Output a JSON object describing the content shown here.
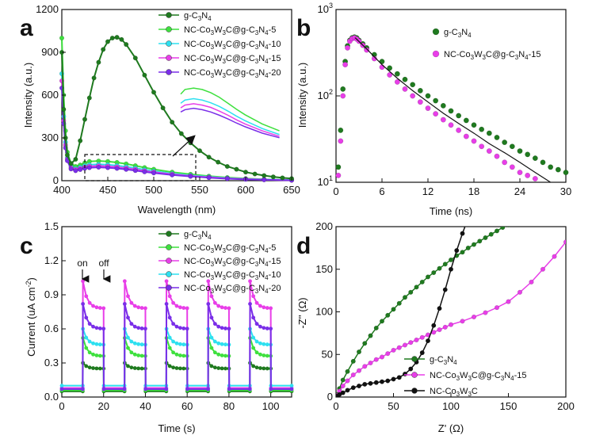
{
  "chart_data": [
    {
      "panel": "a",
      "type": "line",
      "xlabel": "Wavelength (nm)",
      "ylabel": "Intensity (a.u.)",
      "xlim": [
        400,
        650
      ],
      "ylim": [
        0,
        1200
      ],
      "xticks": [
        400,
        450,
        500,
        550,
        600,
        650
      ],
      "yticks": [
        0,
        300,
        600,
        900,
        1200
      ],
      "legend_position": "top-right",
      "series": [
        {
          "name": "g-C3N4",
          "color": "#1f7a1f",
          "marker": "circle",
          "x": [
            400,
            402,
            404,
            406,
            410,
            415,
            420,
            425,
            430,
            435,
            440,
            445,
            450,
            455,
            460,
            465,
            470,
            480,
            490,
            500,
            510,
            520,
            530,
            540,
            550,
            560,
            570,
            580,
            590,
            600,
            610,
            620,
            630,
            640,
            650
          ],
          "y": [
            900,
            500,
            300,
            180,
            120,
            150,
            280,
            430,
            580,
            720,
            830,
            920,
            975,
            1000,
            1005,
            990,
            955,
            860,
            740,
            620,
            510,
            410,
            330,
            265,
            210,
            165,
            130,
            100,
            80,
            60,
            47,
            36,
            27,
            20,
            15
          ]
        },
        {
          "name": "NC-Co3W3C@g-C3N4-5",
          "color": "#3ee03e",
          "marker": "circle",
          "x": [
            400,
            402,
            404,
            406,
            410,
            415,
            420,
            425,
            430,
            440,
            450,
            460,
            470,
            480,
            490,
            500,
            520,
            540,
            560,
            580,
            600,
            620,
            650
          ],
          "y": [
            1000,
            600,
            350,
            200,
            120,
            100,
            110,
            125,
            135,
            138,
            135,
            128,
            118,
            105,
            92,
            80,
            60,
            45,
            32,
            22,
            15,
            10,
            5
          ]
        },
        {
          "name": "NC-Co3W3C@g-C3N4-10",
          "color": "#2ee0f0",
          "marker": "circle",
          "x": [
            400,
            402,
            404,
            406,
            410,
            415,
            420,
            425,
            430,
            440,
            450,
            460,
            470,
            480,
            490,
            500,
            520,
            540,
            560,
            580,
            600,
            620,
            650
          ],
          "y": [
            750,
            450,
            270,
            160,
            100,
            85,
            95,
            105,
            112,
            115,
            112,
            106,
            98,
            88,
            77,
            67,
            50,
            37,
            27,
            18,
            12,
            8,
            4
          ]
        },
        {
          "name": "NC-Co3W3C@g-C3N4-15",
          "color": "#e83ee8",
          "marker": "circle",
          "x": [
            400,
            402,
            404,
            406,
            410,
            415,
            420,
            425,
            430,
            440,
            450,
            460,
            470,
            480,
            490,
            500,
            520,
            540,
            560,
            580,
            600,
            620,
            650
          ],
          "y": [
            700,
            420,
            250,
            150,
            90,
            78,
            86,
            95,
            101,
            104,
            101,
            96,
            88,
            79,
            69,
            60,
            45,
            33,
            24,
            16,
            11,
            7,
            3
          ]
        },
        {
          "name": "NC-Co3W3C@g-C3N4-20",
          "color": "#7a2ee8",
          "marker": "circle",
          "x": [
            400,
            402,
            404,
            406,
            410,
            415,
            420,
            425,
            430,
            440,
            450,
            460,
            470,
            480,
            490,
            500,
            520,
            540,
            560,
            580,
            600,
            620,
            650
          ],
          "y": [
            650,
            400,
            230,
            140,
            82,
            70,
            78,
            86,
            91,
            94,
            91,
            86,
            79,
            71,
            62,
            54,
            40,
            30,
            21,
            14,
            9,
            6,
            3
          ]
        }
      ],
      "annotations": [
        "dashed box 425–545 nm, inset zoom with arrow"
      ]
    },
    {
      "panel": "b",
      "type": "scatter",
      "xlabel": "Time (ns)",
      "ylabel": "Intensity (a.u.)",
      "xlim": [
        0,
        30
      ],
      "ylim": [
        10,
        1000
      ],
      "yscale": "log",
      "xticks": [
        0,
        6,
        12,
        18,
        24,
        30
      ],
      "yticks": [
        10,
        100,
        1000
      ],
      "ytick_labels": [
        "10",
        "10",
        "10"
      ],
      "ytick_exponents": [
        "1",
        "2",
        "3"
      ],
      "legend_position": "top-right",
      "series": [
        {
          "name": "g-C3N4",
          "color": "#1f7a1f",
          "x": [
            0.3,
            0.6,
            0.9,
            1.2,
            1.5,
            1.8,
            2.1,
            2.4,
            2.7,
            3.0,
            3.5,
            4,
            5,
            6,
            7,
            8,
            9,
            10,
            11,
            12,
            13,
            14,
            15,
            16,
            17,
            18,
            19,
            20,
            21,
            22,
            23,
            24,
            25,
            26,
            27,
            28,
            29,
            30
          ],
          "y": [
            15,
            40,
            120,
            250,
            380,
            440,
            470,
            480,
            470,
            440,
            400,
            360,
            300,
            250,
            210,
            180,
            155,
            135,
            115,
            100,
            88,
            77,
            67,
            59,
            52,
            46,
            41,
            37,
            33,
            29,
            26,
            23,
            21,
            19,
            17,
            15,
            14,
            13
          ]
        },
        {
          "name": "NC-Co3W3C@g-C3N4-15",
          "color": "#e83ee8",
          "x": [
            0.3,
            0.6,
            0.9,
            1.2,
            1.5,
            1.8,
            2.1,
            2.4,
            2.7,
            3.0,
            3.5,
            4,
            5,
            6,
            7,
            8,
            9,
            10,
            11,
            12,
            13,
            14,
            15,
            16,
            17,
            18,
            19,
            20,
            21,
            22,
            23,
            24,
            25,
            26
          ],
          "y": [
            12,
            30,
            100,
            230,
            360,
            430,
            460,
            470,
            455,
            430,
            385,
            340,
            270,
            215,
            175,
            145,
            120,
            100,
            85,
            72,
            62,
            53,
            46,
            40,
            34,
            30,
            26,
            23,
            20,
            17,
            15,
            13,
            12,
            11
          ]
        }
      ],
      "fit_curve": {
        "x": [
          2.5,
          4,
          6,
          8,
          10,
          12,
          14,
          16,
          18,
          20,
          22,
          24,
          26,
          28
        ],
        "y": [
          470,
          350,
          230,
          160,
          115,
          85,
          63,
          48,
          37,
          28,
          22,
          17,
          13,
          10
        ]
      }
    },
    {
      "panel": "c",
      "type": "line",
      "xlabel": "Time (s)",
      "ylabel": "Current (uA cm",
      "ylabel_sup": "-2",
      "ylabel_close": ")",
      "xlim": [
        0,
        110
      ],
      "ylim": [
        0,
        1.5
      ],
      "xticks": [
        0,
        20,
        40,
        60,
        80,
        100
      ],
      "yticks": [
        0.0,
        0.3,
        0.6,
        0.9,
        1.2,
        1.5
      ],
      "ytick_labels": [
        "0.0",
        "0.3",
        "0.6",
        "0.9",
        "1.2",
        "1.5"
      ],
      "legend_position": "top-right",
      "light_periods": [
        [
          10,
          20
        ],
        [
          30,
          40
        ],
        [
          50,
          60
        ],
        [
          70,
          80
        ],
        [
          90,
          100
        ]
      ],
      "annotations": [
        "on",
        "off"
      ],
      "series": [
        {
          "name": "g-C3N4",
          "color": "#1f7a1f",
          "on_start": 0.3,
          "on_end": 0.25,
          "off": 0.05
        },
        {
          "name": "NC-Co3W3C@g-C3N4-5",
          "color": "#3ee03e",
          "on_start": 0.52,
          "on_end": 0.36,
          "off": 0.06
        },
        {
          "name": "NC-Co3W3C@g-C3N4-15",
          "color": "#e83ee8",
          "on_start": 1.02,
          "on_end": 0.78,
          "off": 0.08
        },
        {
          "name": "NC-Co3W3C@g-C3N4-10",
          "color": "#2ee0f0",
          "on_start": 0.6,
          "on_end": 0.46,
          "off": 0.1
        },
        {
          "name": "NC-Co3W3C@g-C3N4-20",
          "color": "#7a2ee8",
          "on_start": 0.82,
          "on_end": 0.6,
          "off": 0.07
        }
      ]
    },
    {
      "panel": "d",
      "type": "scatter",
      "xlabel": "Z' (Ω)",
      "ylabel": "-Z'' (Ω)",
      "xlim": [
        0,
        200
      ],
      "ylim": [
        0,
        200
      ],
      "xticks": [
        0,
        50,
        100,
        150,
        200
      ],
      "yticks": [
        0,
        50,
        100,
        150,
        200
      ],
      "legend_position": "bottom-right",
      "series": [
        {
          "name": "g-C3N4",
          "color": "#1f7a1f",
          "x": [
            1,
            3,
            6,
            10,
            15,
            20,
            25,
            30,
            35,
            40,
            45,
            50,
            55,
            60,
            65,
            70,
            75,
            80,
            85,
            90,
            95,
            100,
            105,
            110,
            115,
            120,
            125,
            130,
            135,
            140,
            145,
            150,
            155
          ],
          "y": [
            3,
            10,
            20,
            30,
            42,
            53,
            63,
            72,
            81,
            89,
            96,
            103,
            110,
            117,
            123,
            129,
            135,
            141,
            146,
            151,
            156,
            161,
            166,
            170,
            175,
            179,
            183,
            187,
            191,
            195,
            199,
            202,
            205
          ]
        },
        {
          "name": "NC-Co3W3C@g-C3N4-15",
          "color": "#e83ee8",
          "x": [
            1,
            3,
            6,
            10,
            15,
            20,
            25,
            30,
            35,
            40,
            45,
            50,
            55,
            60,
            65,
            70,
            75,
            80,
            85,
            90,
            95,
            100,
            110,
            120,
            130,
            140,
            150,
            160,
            170,
            180,
            190,
            200
          ],
          "y": [
            2,
            7,
            13,
            19,
            26,
            31,
            36,
            40,
            44,
            47,
            51,
            55,
            58,
            61,
            64,
            67,
            70,
            73,
            76,
            79,
            82,
            85,
            89,
            94,
            99,
            105,
            112,
            123,
            135,
            150,
            165,
            182
          ]
        },
        {
          "name": "NC-Co3W3C",
          "color": "#111111",
          "x": [
            1,
            3,
            6,
            10,
            15,
            20,
            25,
            30,
            35,
            40,
            45,
            50,
            55,
            60,
            65,
            70,
            75,
            80,
            85,
            90,
            95,
            100,
            105,
            110,
            115
          ],
          "y": [
            1,
            3,
            5,
            8,
            11,
            13,
            15,
            16,
            17,
            18,
            19,
            21,
            23,
            27,
            33,
            41,
            52,
            66,
            84,
            104,
            126,
            150,
            172,
            192,
            210
          ]
        }
      ]
    }
  ],
  "legend_text_a": {
    "s1": {
      "pre": "g-C",
      "sub1": "3",
      "mid1": "N",
      "sub2": "4",
      "post": ""
    },
    "s2": {
      "pre": "NC-Co",
      "sub1": "3",
      "mid1": "W",
      "sub2": "3",
      "mid2": "C@g-C",
      "sub3": "3",
      "mid3": "N",
      "sub4": "4",
      "post": "-5"
    },
    "s3": {
      "pre": "NC-Co",
      "sub1": "3",
      "mid1": "W",
      "sub2": "3",
      "mid2": "C@g-C",
      "sub3": "3",
      "mid3": "N",
      "sub4": "4",
      "post": "-10"
    },
    "s4": {
      "pre": "NC-Co",
      "sub1": "3",
      "mid1": "W",
      "sub2": "3",
      "mid2": "C@g-C",
      "sub3": "3",
      "mid3": "N",
      "sub4": "4",
      "post": "-15"
    },
    "s5": {
      "pre": "NC-Co",
      "sub1": "3",
      "mid1": "W",
      "sub2": "3",
      "mid2": "C@g-C",
      "sub3": "3",
      "mid3": "N",
      "sub4": "4",
      "post": "-20"
    }
  },
  "panel_labels": [
    "a",
    "b",
    "c",
    "d"
  ],
  "legend_c_labels": [
    "g-C3N4",
    "NC-Co3W3C@g-C3N4-5",
    "NC-Co3W3C@g-C3N4-15",
    "NC-Co3W3C@g-C3N4-10",
    "NC-Co3W3C@g-C3N4-20"
  ],
  "legend_c_suffix": [
    "",
    "-5",
    "-15",
    "-10",
    "-20"
  ],
  "legend_d_suffix": [
    "",
    "-15",
    ""
  ]
}
